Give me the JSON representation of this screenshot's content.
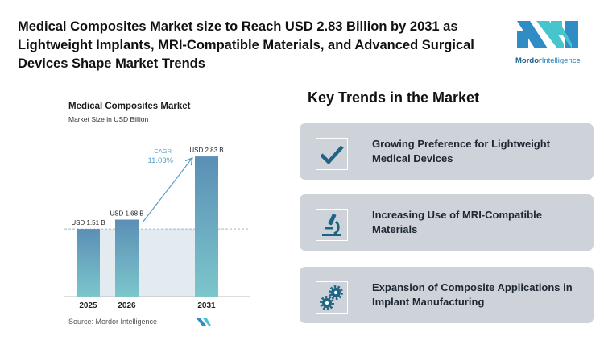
{
  "title": "Medical Composites Market size to Reach USD 2.83 Billion by 2031 as Lightweight Implants, MRI-Compatible Materials, and Advanced Surgical Devices Shape Market Trends",
  "logo": {
    "brand": "Mordor",
    "brand2": "Intelligence"
  },
  "chart_data": {
    "type": "bar",
    "title": "Medical Composites Market",
    "subtitle": "Market Size in USD Billion",
    "categories": [
      "2025",
      "2026",
      "2031"
    ],
    "values": [
      1.51,
      1.68,
      2.83
    ],
    "data_labels": [
      "USD 1.51 B",
      "USD 1.68 B",
      "USD 2.83 B"
    ],
    "annotation": {
      "label": "CAGR",
      "value": "11.03%"
    },
    "colors": {
      "bar_top": "#5b8fb5",
      "bar_bottom": "#7cc6cc",
      "annotation": "#5a9fc8"
    },
    "source": "Source:  Mordor Intelligence"
  },
  "trends": {
    "heading": "Key Trends in the Market",
    "items": [
      {
        "icon": "check-icon",
        "text": "Growing Preference for Lightweight Medical Devices"
      },
      {
        "icon": "microscope-icon",
        "text": "Increasing Use of MRI-Compatible Materials"
      },
      {
        "icon": "gears-icon",
        "text": "Expansion of Composite Applications in Implant Manufacturing"
      }
    ],
    "icon_color": "#1f6484",
    "card_color": "#ced3da"
  }
}
